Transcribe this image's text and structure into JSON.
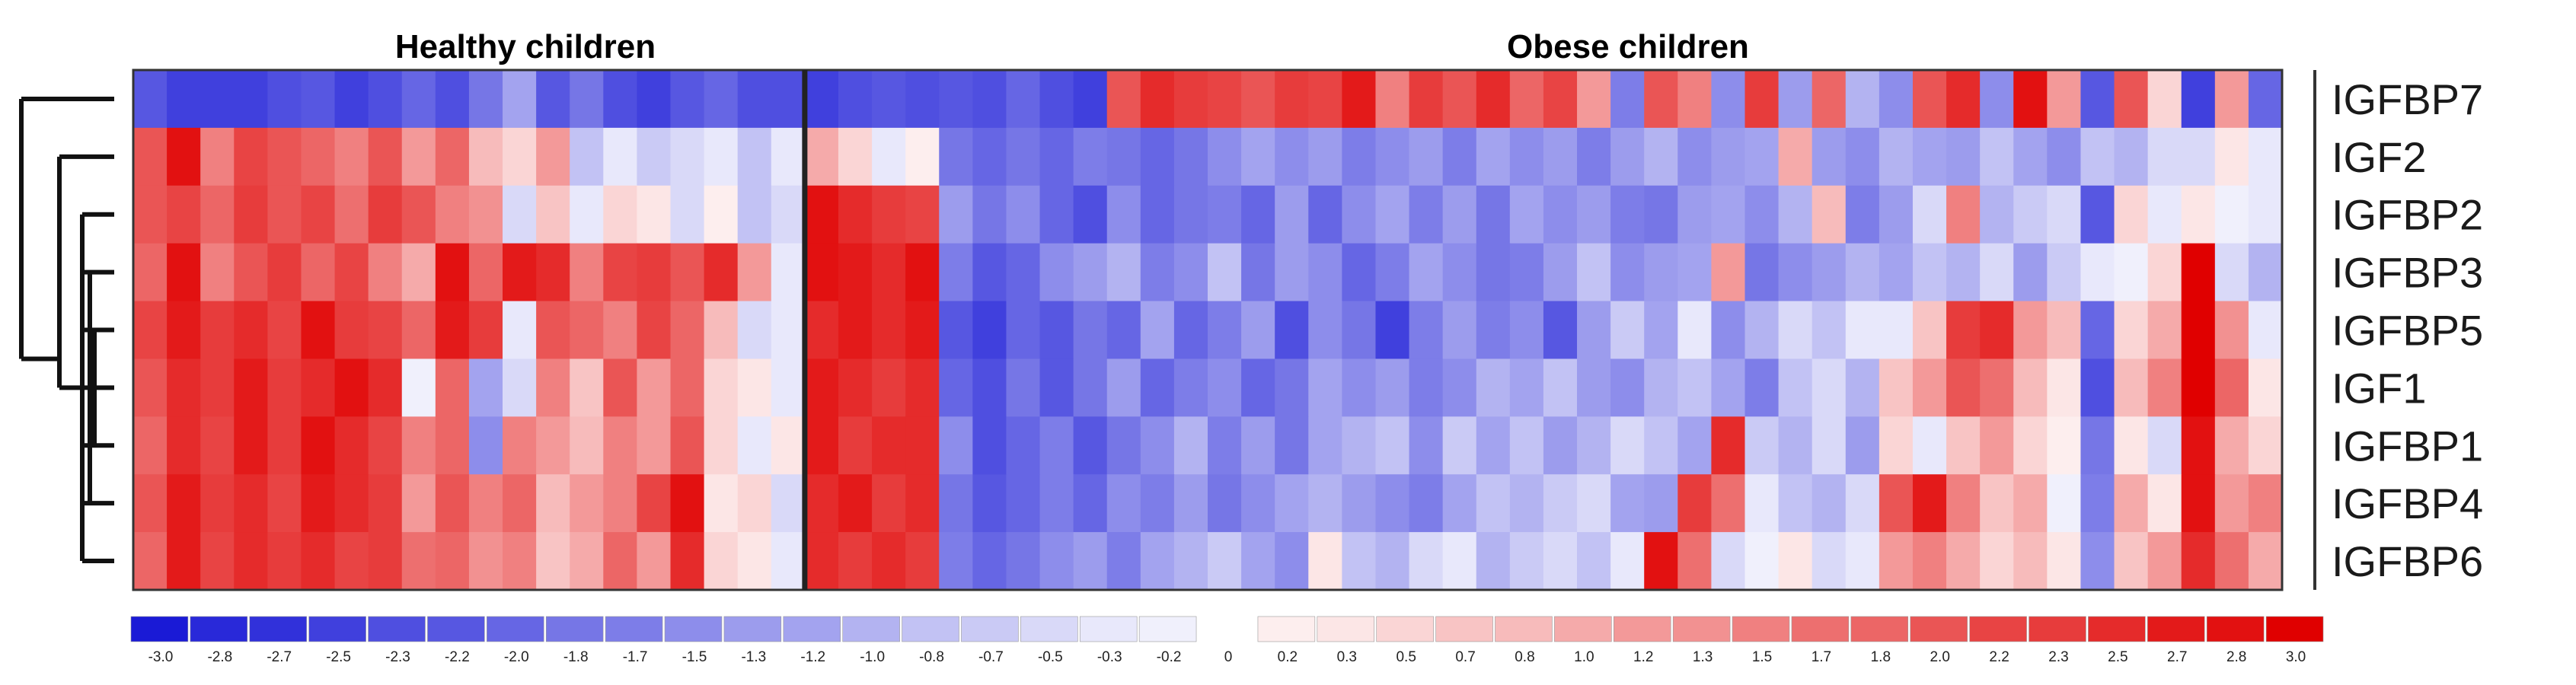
{
  "chart_data": {
    "type": "heatmap",
    "groups": [
      {
        "name": "Healthy children",
        "count": 20
      },
      {
        "name": "Obese children",
        "count": 44
      }
    ],
    "rows": [
      "IGFBP7",
      "IGF2",
      "IGFBP2",
      "IGFBP3",
      "IGFBP5",
      "IGF1",
      "IGFBP1",
      "IGFBP4",
      "IGFBP6"
    ],
    "values": [
      [
        -2.2,
        -2.5,
        -2.5,
        -2.5,
        -2.3,
        -2.2,
        -2.5,
        -2.3,
        -2.0,
        -2.3,
        -1.8,
        -1.2,
        -2.2,
        -1.8,
        -2.3,
        -2.5,
        -2.2,
        -2.0,
        -2.3,
        -2.3,
        -2.5,
        -2.3,
        -2.2,
        -2.3,
        -2.2,
        -2.3,
        -2.0,
        -2.3,
        -2.5,
        2.0,
        2.5,
        2.3,
        2.2,
        2.0,
        2.3,
        2.2,
        2.7,
        1.5,
        2.3,
        2.0,
        2.5,
        1.8,
        2.2,
        1.2,
        -1.7,
        2.0,
        1.5,
        -1.5,
        2.3,
        -1.3,
        1.8,
        -1.0,
        -1.5,
        2.0,
        2.5,
        -1.5,
        2.8,
        1.2,
        -2.2,
        2.0,
        0.5,
        -2.5,
        1.2,
        -2.0
      ],
      [
        2.0,
        2.8,
        1.5,
        2.2,
        2.0,
        1.8,
        1.5,
        2.0,
        1.2,
        1.8,
        0.8,
        0.5,
        1.2,
        -0.8,
        -0.3,
        -0.7,
        -0.5,
        -0.3,
        -0.8,
        -0.3,
        1.0,
        0.5,
        -0.3,
        0.2,
        -1.8,
        -2.0,
        -1.8,
        -2.0,
        -1.7,
        -1.8,
        -2.0,
        -1.8,
        -1.5,
        -1.2,
        -1.5,
        -1.3,
        -1.7,
        -1.5,
        -1.3,
        -1.7,
        -1.2,
        -1.5,
        -1.3,
        -1.7,
        -1.3,
        -1.0,
        -1.5,
        -1.3,
        -1.2,
        1.0,
        -1.3,
        -1.5,
        -1.0,
        -1.2,
        -1.3,
        -0.8,
        -1.2,
        -1.5,
        -0.8,
        -1.0,
        -0.5,
        -0.5,
        0.3,
        -0.3
      ],
      [
        2.0,
        2.2,
        1.8,
        2.3,
        2.0,
        2.2,
        1.7,
        2.3,
        2.0,
        1.5,
        1.3,
        -0.5,
        0.7,
        -0.3,
        0.5,
        0.3,
        -0.5,
        0.2,
        -0.8,
        -0.5,
        2.8,
        2.5,
        2.3,
        2.2,
        -1.3,
        -1.8,
        -1.5,
        -2.0,
        -2.3,
        -1.5,
        -2.0,
        -1.8,
        -1.7,
        -2.0,
        -1.3,
        -2.0,
        -1.5,
        -1.2,
        -1.7,
        -1.3,
        -1.8,
        -1.2,
        -1.5,
        -1.3,
        -1.7,
        -1.8,
        -1.3,
        -1.2,
        -1.5,
        -1.0,
        0.8,
        -1.7,
        -1.3,
        -0.5,
        1.5,
        -1.0,
        -0.7,
        -0.5,
        -2.2,
        0.5,
        -0.3,
        0.3,
        -0.2,
        -0.3
      ],
      [
        1.8,
        2.8,
        1.5,
        2.0,
        2.3,
        1.8,
        2.2,
        1.5,
        1.0,
        2.8,
        1.8,
        2.7,
        2.5,
        1.5,
        2.2,
        2.3,
        2.0,
        2.5,
        1.2,
        -0.3,
        2.8,
        2.7,
        2.5,
        2.8,
        -1.7,
        -2.2,
        -2.0,
        -1.5,
        -1.3,
        -1.0,
        -1.7,
        -1.5,
        -0.8,
        -1.8,
        -1.3,
        -1.5,
        -2.0,
        -1.7,
        -1.2,
        -1.5,
        -1.8,
        -1.7,
        -1.3,
        -0.8,
        -1.5,
        -1.3,
        -1.2,
        1.2,
        -1.8,
        -1.5,
        -1.3,
        -1.0,
        -1.2,
        -0.8,
        -1.0,
        -0.5,
        -1.3,
        -0.7,
        -0.3,
        -0.2,
        0.5,
        3.0,
        -0.5,
        -1.0
      ],
      [
        2.2,
        2.7,
        2.3,
        2.5,
        2.2,
        2.8,
        2.3,
        2.2,
        1.8,
        2.7,
        2.3,
        -0.3,
        2.0,
        1.8,
        1.5,
        2.2,
        1.8,
        0.8,
        -0.5,
        -0.3,
        2.5,
        2.7,
        2.5,
        2.7,
        -2.2,
        -2.5,
        -2.0,
        -2.2,
        -1.8,
        -2.0,
        -1.2,
        -2.0,
        -1.7,
        -1.3,
        -2.3,
        -1.5,
        -1.8,
        -2.5,
        -1.7,
        -1.3,
        -1.7,
        -1.5,
        -2.2,
        -1.3,
        -0.7,
        -1.2,
        -0.3,
        -1.5,
        -1.0,
        -0.5,
        -0.8,
        -0.3,
        -0.3,
        0.7,
        2.3,
        2.5,
        1.2,
        0.8,
        -2.0,
        0.5,
        1.0,
        3.0,
        1.3,
        -0.3
      ],
      [
        2.0,
        2.5,
        2.3,
        2.7,
        2.3,
        2.5,
        2.8,
        2.5,
        -0.2,
        1.8,
        -1.2,
        -0.5,
        1.5,
        0.7,
        2.0,
        1.2,
        1.8,
        0.5,
        0.3,
        -0.3,
        2.7,
        2.5,
        2.3,
        2.5,
        -2.0,
        -2.3,
        -1.8,
        -2.2,
        -1.8,
        -1.3,
        -2.0,
        -1.7,
        -1.5,
        -2.0,
        -1.8,
        -1.2,
        -1.5,
        -1.3,
        -1.7,
        -1.5,
        -1.0,
        -1.2,
        -0.8,
        -1.3,
        -1.5,
        -1.0,
        -0.8,
        -1.2,
        -1.7,
        -0.8,
        -0.5,
        -1.0,
        0.7,
        1.2,
        2.0,
        1.7,
        0.8,
        0.3,
        -2.3,
        0.8,
        1.5,
        3.0,
        1.8,
        0.3
      ],
      [
        1.8,
        2.5,
        2.2,
        2.7,
        2.3,
        2.8,
        2.5,
        2.2,
        1.5,
        1.8,
        -1.5,
        1.5,
        1.2,
        0.8,
        1.5,
        1.2,
        2.0,
        0.5,
        -0.3,
        0.3,
        2.7,
        2.3,
        2.5,
        2.5,
        -1.5,
        -2.3,
        -2.0,
        -1.7,
        -2.2,
        -1.8,
        -1.5,
        -1.0,
        -1.7,
        -1.3,
        -1.8,
        -1.2,
        -1.0,
        -0.8,
        -1.5,
        -0.7,
        -1.2,
        -0.8,
        -1.3,
        -1.0,
        -0.5,
        -0.8,
        -1.2,
        2.5,
        -0.7,
        -1.0,
        -0.5,
        -1.3,
        0.5,
        -0.3,
        0.7,
        1.2,
        0.5,
        0.2,
        -1.8,
        0.3,
        -0.5,
        2.8,
        1.0,
        0.5
      ],
      [
        2.0,
        2.7,
        2.3,
        2.5,
        2.2,
        2.7,
        2.5,
        2.3,
        1.2,
        2.0,
        1.5,
        1.8,
        0.8,
        1.2,
        1.5,
        2.2,
        2.8,
        0.3,
        0.5,
        -0.5,
        2.5,
        2.7,
        2.3,
        2.5,
        -1.8,
        -2.2,
        -2.0,
        -1.7,
        -2.0,
        -1.5,
        -1.7,
        -1.3,
        -1.8,
        -1.5,
        -1.2,
        -1.0,
        -1.3,
        -1.5,
        -1.7,
        -1.2,
        -0.8,
        -1.0,
        -0.7,
        -0.5,
        -1.2,
        -1.3,
        2.3,
        1.7,
        -0.3,
        -0.8,
        -1.0,
        -0.5,
        2.0,
        2.7,
        1.5,
        0.7,
        1.0,
        -0.2,
        -1.7,
        1.0,
        0.3,
        2.8,
        1.2,
        1.5
      ],
      [
        1.8,
        2.7,
        2.2,
        2.5,
        2.3,
        2.5,
        2.2,
        2.3,
        1.7,
        1.8,
        1.3,
        1.5,
        0.7,
        1.0,
        1.8,
        1.2,
        2.5,
        0.5,
        0.3,
        -0.3,
        2.5,
        2.3,
        2.5,
        2.3,
        -1.7,
        -2.0,
        -1.8,
        -1.5,
        -1.3,
        -1.7,
        -1.2,
        -1.0,
        -0.7,
        -1.2,
        -1.5,
        0.3,
        -0.8,
        -1.0,
        -0.5,
        -0.3,
        -1.0,
        -0.7,
        -0.5,
        -0.8,
        -0.3,
        2.8,
        1.7,
        -0.5,
        -0.2,
        0.3,
        -0.5,
        -0.3,
        1.2,
        1.5,
        1.0,
        0.5,
        0.8,
        0.3,
        -1.5,
        0.7,
        1.2,
        2.5,
        1.7,
        1.0
      ]
    ],
    "colorbar_ticks": [
      "-3.0",
      "-2.8",
      "-2.7",
      "-2.5",
      "-2.3",
      "-2.2",
      "-2.0",
      "-1.8",
      "-1.7",
      "-1.5",
      "-1.3",
      "-1.2",
      "-1.0",
      "-0.8",
      "-0.7",
      "-0.5",
      "-0.3",
      "-0.2",
      "0",
      "0.2",
      "0.3",
      "0.5",
      "0.7",
      "0.8",
      "1.0",
      "1.2",
      "1.3",
      "1.5",
      "1.7",
      "1.8",
      "2.0",
      "2.2",
      "2.3",
      "2.5",
      "2.7",
      "2.8",
      "3.0"
    ],
    "colorscale": {
      "min": -3.0,
      "max": 3.0,
      "low": "#1a1ad6",
      "mid": "#ffffff",
      "high": "#e00000"
    },
    "dendrogram": true,
    "grid": false
  }
}
